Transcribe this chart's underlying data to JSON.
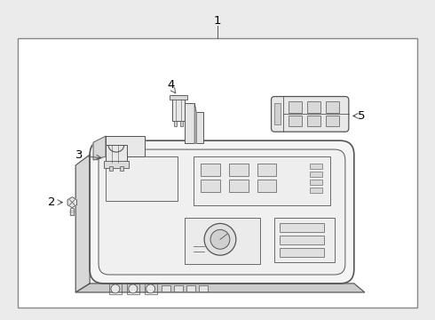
{
  "bg_color": "#ebebeb",
  "border_color": "#888888",
  "line_color": "#555555",
  "figsize": [
    4.9,
    3.6
  ],
  "dpi": 100
}
